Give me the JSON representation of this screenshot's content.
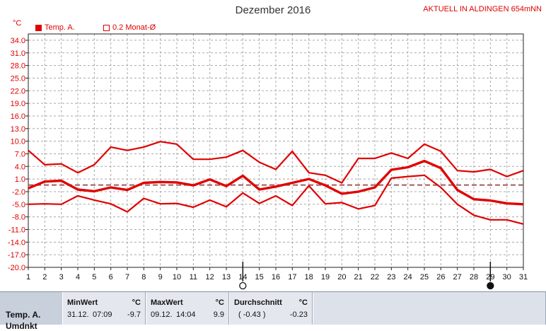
{
  "header": {
    "title": "Dezember 2016",
    "station": "AKTUELL IN ALDINGEN 654mNN",
    "unit": "°C"
  },
  "legend": [
    {
      "label": "Temp. A.",
      "color": "#e00000",
      "filled": true
    },
    {
      "label": "0.2 Monat-Ø",
      "color": "#e00000",
      "filled": false
    }
  ],
  "chart_data": {
    "type": "line",
    "title": "Dezember 2016",
    "ylabel": "°C",
    "xlabel": "",
    "x": [
      1,
      2,
      3,
      4,
      5,
      6,
      7,
      8,
      9,
      10,
      11,
      12,
      13,
      14,
      15,
      16,
      17,
      18,
      19,
      20,
      21,
      22,
      23,
      24,
      25,
      26,
      27,
      28,
      29,
      30,
      31
    ],
    "ylim": [
      -20.0,
      35.5
    ],
    "yticks": [
      34.0,
      31.0,
      28.0,
      25.0,
      22.0,
      19.0,
      16.0,
      13.0,
      10.0,
      7.0,
      4.0,
      1.0,
      -2.0,
      -5.0,
      -8.0,
      -11.0,
      -14.0,
      -17.0,
      -20.0
    ],
    "ytick_labels": [
      "34.0",
      "31.0",
      "28.0",
      "25.0",
      "22.0",
      "19.0",
      "16.0",
      "13.0",
      "10.0",
      "7.0",
      "4.0",
      "1.0",
      "-2.0",
      "-5.0",
      "-8.0",
      "-11.0",
      "-14.0",
      "-17.0",
      "-20.0"
    ],
    "xtick_labels": [
      "1",
      "2",
      "3",
      "4",
      "5",
      "6",
      "7",
      "8",
      "9",
      "10",
      "11",
      "12",
      "13",
      "14",
      "15",
      "16",
      "17",
      "18",
      "19",
      "20",
      "21",
      "22",
      "23",
      "24",
      "25",
      "26",
      "27",
      "28",
      "29",
      "30",
      "31"
    ],
    "grid": true,
    "reference_line": -0.43,
    "series": [
      {
        "name": "",
        "color": "#e00000",
        "width": 2.2,
        "values": [
          7.8,
          4.4,
          4.6,
          2.5,
          4.4,
          8.6,
          7.8,
          8.6,
          9.9,
          9.3,
          5.7,
          5.7,
          6.2,
          7.8,
          5.0,
          3.3,
          7.6,
          2.5,
          1.9,
          0.1,
          5.9,
          5.9,
          7.2,
          5.9,
          9.3,
          7.6,
          3.0,
          2.7,
          3.3,
          1.6,
          3.0
        ]
      },
      {
        "name": "",
        "color": "#e00000",
        "width": 3.4,
        "values": [
          -1.2,
          0.4,
          0.6,
          -1.5,
          -1.9,
          -1.0,
          -1.6,
          0.1,
          0.3,
          0.2,
          -0.5,
          0.9,
          -0.7,
          1.8,
          -1.5,
          -0.8,
          0.1,
          1.0,
          -0.5,
          -2.5,
          -2.0,
          -1.0,
          3.2,
          3.8,
          5.3,
          3.6,
          -1.6,
          -3.8,
          -4.1,
          -4.8,
          -5.0
        ]
      },
      {
        "name": "",
        "color": "#e00000",
        "width": 2.2,
        "values": [
          -5.0,
          -4.9,
          -5.0,
          -3.0,
          -4.0,
          -4.9,
          -6.8,
          -3.6,
          -4.9,
          -4.8,
          -5.7,
          -4.0,
          -5.6,
          -2.3,
          -4.8,
          -3.0,
          -5.3,
          -0.6,
          -4.9,
          -4.6,
          -6.1,
          -5.3,
          1.2,
          1.6,
          1.9,
          -1.0,
          -5.0,
          -7.6,
          -8.7,
          -8.7,
          -9.7
        ]
      }
    ],
    "markers": [
      {
        "x": 14,
        "type": "open-circle",
        "label": "new-moon"
      },
      {
        "x": 29,
        "type": "filled-circle",
        "label": "full-moon"
      }
    ]
  },
  "footer": {
    "row_label": "Temp. A.",
    "row_label2": "Umdnkt",
    "min": {
      "header": "MinWert",
      "unit": "°C",
      "date": "31.12.",
      "time": "07:09",
      "value": "-9.7"
    },
    "max": {
      "header": "MaxWert",
      "unit": "°C",
      "date": "09.12.",
      "time": "14:04",
      "value": "9.9"
    },
    "avg": {
      "header": "Durchschnitt",
      "unit": "°C",
      "paren": "( -0.43 )",
      "value": "-0.23"
    }
  },
  "colors": {
    "accent": "#e00000",
    "grid": "#a8a8a8",
    "axis": "#222222",
    "mean_line": "#a05a5a"
  }
}
